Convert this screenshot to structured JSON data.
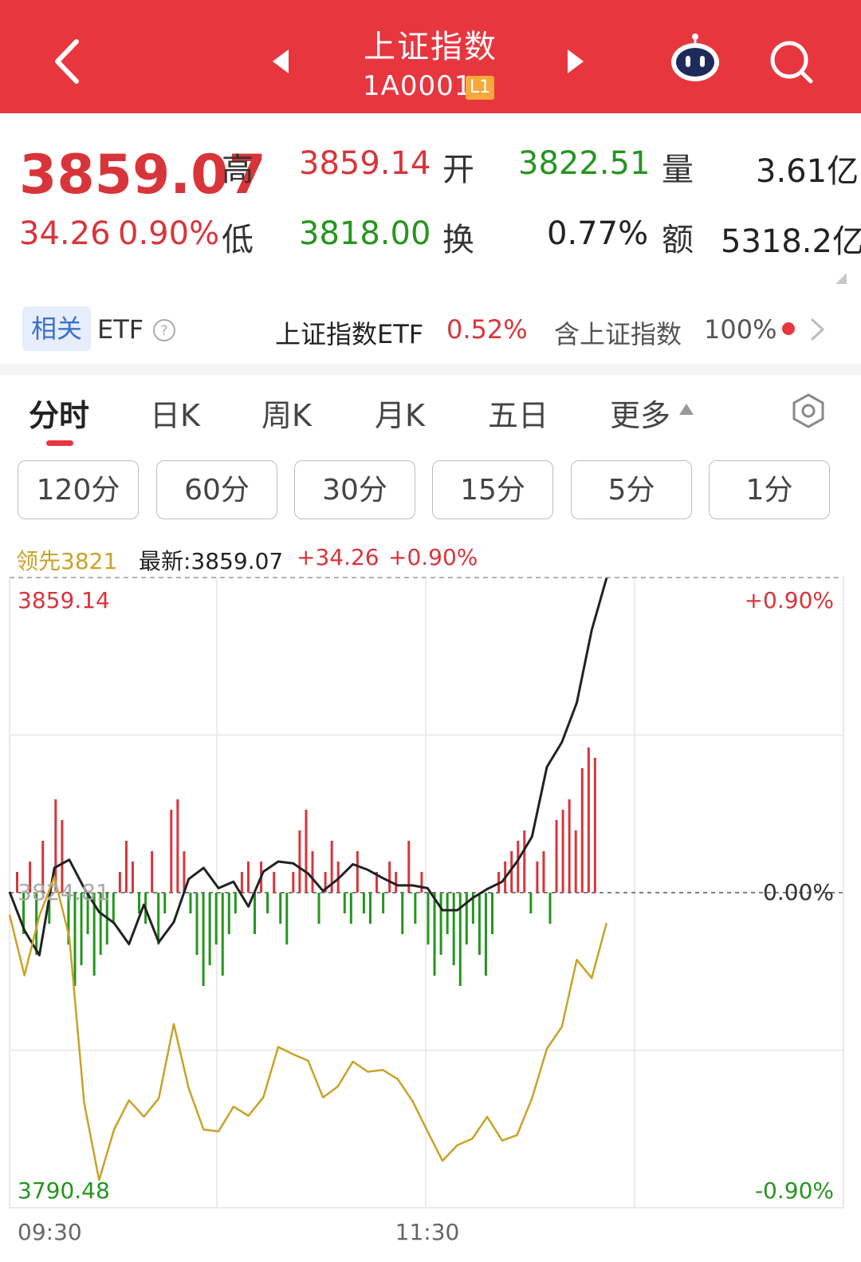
{
  "header": {
    "title": "上证指数",
    "code": "1A0001",
    "badge": "L1",
    "background": "#e8363f"
  },
  "quote": {
    "price": "3859.07",
    "change": "34.26",
    "change_pct": "0.90%",
    "high_label": "高",
    "high": "3859.14",
    "open_label": "开",
    "open": "3822.51",
    "volume_label": "量",
    "volume": "3.61亿",
    "low_label": "低",
    "low": "3818.00",
    "turnover_label": "换",
    "turnover": "0.77%",
    "amount_label": "额",
    "amount": "5318.2亿"
  },
  "etf": {
    "related_label": "相关",
    "etf_label": "ETF",
    "name": "上证指数ETF",
    "pct": "0.52%",
    "contains": "含上证指数",
    "weight": "100%"
  },
  "tabs": [
    "分时",
    "日K",
    "周K",
    "月K",
    "五日",
    "更多"
  ],
  "intervals": [
    "120分",
    "60分",
    "30分",
    "15分",
    "5分",
    "1分"
  ],
  "info": {
    "leader": "领先3821",
    "latest": "最新:3859.07",
    "change": "+34.26",
    "pct": "+0.90%"
  },
  "chart_data": {
    "type": "line",
    "y_left_top": "3859.14",
    "y_left_mid": "3824.81",
    "y_left_bottom": "3790.48",
    "y_right_top": "+0.90%",
    "y_right_mid": "0.00%",
    "y_right_bottom": "-0.90%",
    "x_labels": [
      "09:30",
      "11:30"
    ],
    "ylim": [
      3790.48,
      3859.14
    ],
    "base": 3824.81,
    "series": [
      {
        "name": "",
        "color": "#222222",
        "x": [
          0,
          6,
          12,
          18,
          24,
          30,
          36,
          42,
          48,
          54,
          60,
          66,
          72,
          78,
          84,
          90,
          96,
          102,
          108,
          114,
          120,
          126,
          132,
          138,
          144,
          150,
          156,
          162,
          168,
          174,
          180,
          186,
          192,
          198,
          204,
          210,
          216,
          222,
          228,
          234,
          240
        ],
        "y": [
          3824.9,
          3820.7,
          3818.0,
          3827.5,
          3828.4,
          3825.3,
          3822.7,
          3821.5,
          3819.2,
          3823.5,
          3819.4,
          3821.6,
          3826.3,
          3827.5,
          3825.3,
          3826.0,
          3823.3,
          3827.1,
          3828.2,
          3828.0,
          3826.9,
          3825.0,
          3826.3,
          3827.9,
          3827.3,
          3826.4,
          3825.6,
          3825.6,
          3825.3,
          3822.9,
          3822.9,
          3824.2,
          3825.2,
          3826.0,
          3828.2,
          3830.9,
          3838.5,
          3841.2,
          3845.5,
          3853.4,
          3859.1
        ]
      },
      {
        "name": "领先3821",
        "color": "#c9a227",
        "x": [
          0,
          6,
          12,
          18,
          24,
          30,
          36,
          42,
          48,
          54,
          60,
          66,
          72,
          78,
          84,
          90,
          96,
          102,
          108,
          114,
          120,
          126,
          132,
          138,
          144,
          150,
          156,
          162,
          168,
          174,
          180,
          186,
          192,
          198,
          204,
          210,
          216,
          222,
          228,
          234,
          240
        ],
        "y": [
          3822.4,
          3815.8,
          3822.3,
          3826.5,
          3820.0,
          3801.9,
          3793.5,
          3799.0,
          3802.2,
          3800.4,
          3802.4,
          3810.5,
          3803.5,
          3799.0,
          3798.8,
          3801.5,
          3800.5,
          3802.5,
          3808.0,
          3807.2,
          3806.5,
          3802.5,
          3803.7,
          3806.4,
          3805.3,
          3805.5,
          3804.5,
          3802.1,
          3798.8,
          3795.6,
          3797.3,
          3798.0,
          3800.4,
          3797.8,
          3798.4,
          3802.4,
          3807.8,
          3810.2,
          3817.5,
          3815.5,
          3821.5
        ]
      }
    ],
    "volume_bars": {
      "x_step": 3,
      "values": [
        0.2,
        -0.4,
        0.3,
        -0.6,
        0.5,
        -0.3,
        0.9,
        0.7,
        -0.5,
        -0.9,
        -0.7,
        -0.4,
        -0.8,
        -0.6,
        -0.5,
        -0.3,
        0.2,
        0.5,
        0.3,
        -0.2,
        -0.3,
        0.4,
        -0.5,
        -0.2,
        0.8,
        0.9,
        0.4,
        -0.2,
        -0.6,
        -0.9,
        -0.7,
        -0.5,
        -0.8,
        -0.4,
        -0.2,
        0.2,
        0.3,
        -0.4,
        0.3,
        -0.2,
        0.2,
        -0.3,
        -0.5,
        0.2,
        0.6,
        0.8,
        0.4,
        -0.3,
        0.2,
        0.5,
        0.3,
        -0.2,
        -0.3,
        0.4,
        -0.2,
        -0.3,
        0.2,
        -0.2,
        0.3,
        0.2,
        -0.4,
        0.5,
        -0.3,
        0.2,
        -0.5,
        -0.8,
        -0.6,
        -0.4,
        -0.7,
        -0.9,
        -0.5,
        -0.3,
        -0.6,
        -0.8,
        -0.4,
        0.2,
        0.3,
        0.4,
        0.5,
        0.6,
        -0.2,
        0.3,
        0.4,
        -0.3,
        0.7,
        0.8,
        0.9,
        0.6,
        1.2,
        1.4,
        1.3
      ]
    }
  }
}
